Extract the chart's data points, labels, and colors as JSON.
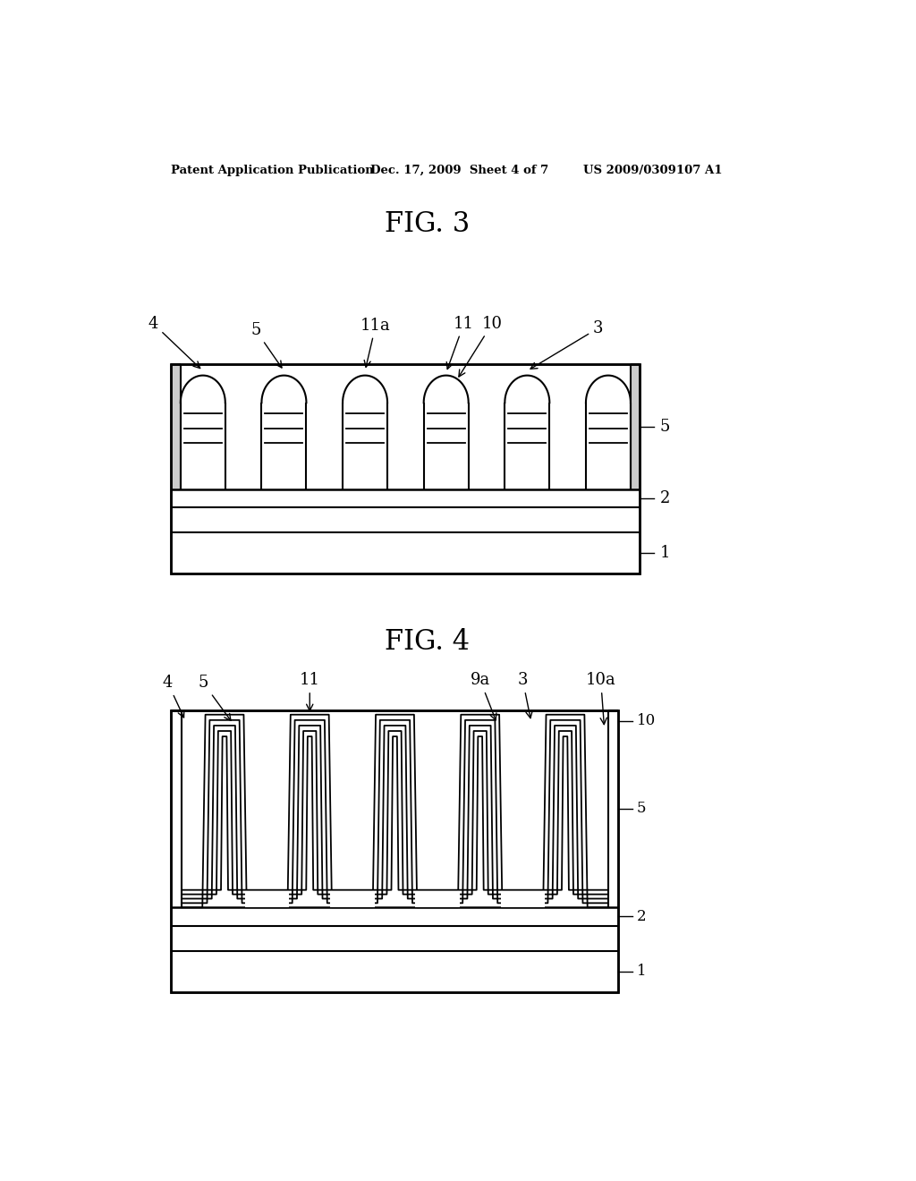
{
  "bg_color": "#ffffff",
  "header_text": "Patent Application Publication",
  "header_date": "Dec. 17, 2009  Sheet 4 of 7",
  "header_patent": "US 2009/0309107 A1",
  "fig3_title": "FIG. 3",
  "fig4_title": "FIG. 4"
}
